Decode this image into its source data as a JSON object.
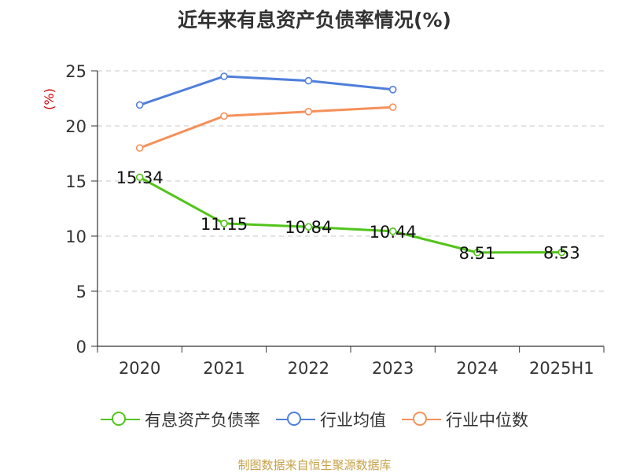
{
  "title": "近年来有息资产负债率情况(%)",
  "source": "制图数据来自恒生聚源数据库",
  "chart_data": {
    "type": "line",
    "title": "近年来有息资产负债率情况(%)",
    "ylabel": "(%)",
    "categories": [
      "2020",
      "2021",
      "2022",
      "2023",
      "2024",
      "2025H1"
    ],
    "ylim": [
      0,
      25
    ],
    "yticks": [
      0,
      5,
      10,
      15,
      20,
      25
    ],
    "grid": true,
    "legend_position": "bottom",
    "series": [
      {
        "name": "有息资产负债率",
        "color": "#52c41a",
        "values": [
          15.34,
          11.15,
          10.84,
          10.44,
          8.51,
          8.53
        ],
        "labels": [
          "15.34",
          "11.15",
          "10.84",
          "10.44",
          "8.51",
          "8.53"
        ]
      },
      {
        "name": "行业均值",
        "color": "#4f7fda",
        "values": [
          21.9,
          24.5,
          24.1,
          23.3,
          null,
          null
        ]
      },
      {
        "name": "行业中位数",
        "color": "#f5905a",
        "values": [
          18.0,
          20.9,
          21.3,
          21.7,
          null,
          null
        ]
      }
    ]
  },
  "colors": {
    "ylabel": "#cc0000",
    "grid": "#c8c8c8",
    "axis": "#333333"
  }
}
